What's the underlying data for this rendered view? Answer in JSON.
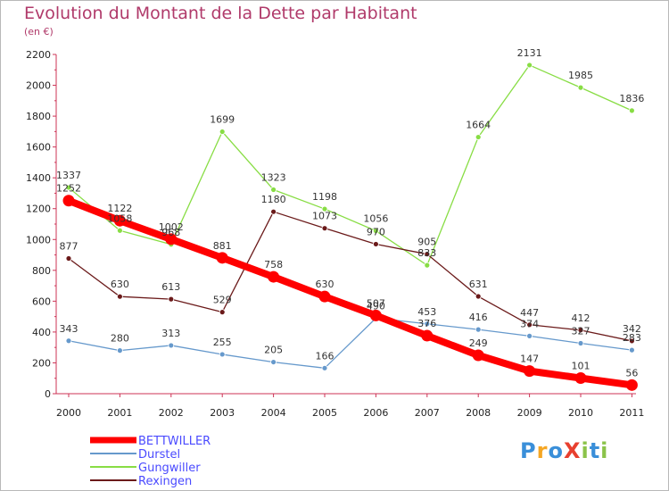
{
  "chart_data": {
    "type": "line",
    "title": "Evolution du Montant de la Dette par Habitant",
    "subtitle": "(en €)",
    "x": [
      "2000",
      "2001",
      "2002",
      "2003",
      "2004",
      "2005",
      "2006",
      "2007",
      "2008",
      "2009",
      "2010",
      "2011"
    ],
    "ylim": [
      0,
      2200
    ],
    "yticks": [
      0,
      200,
      400,
      600,
      800,
      1000,
      1200,
      1400,
      1600,
      1800,
      2000,
      2200
    ],
    "grid": false,
    "legend_position": "bottom-left",
    "series": [
      {
        "name": "BETTWILLER",
        "color": "#ff0000",
        "values": [
          1252,
          1122,
          1002,
          881,
          758,
          630,
          507,
          376,
          249,
          147,
          101,
          56
        ]
      },
      {
        "name": "Durstel",
        "color": "#6699cc",
        "values": [
          343,
          280,
          313,
          255,
          205,
          166,
          490,
          453,
          416,
          374,
          327,
          283
        ]
      },
      {
        "name": "Gungwiller",
        "color": "#88dd44",
        "values": [
          1337,
          1058,
          968,
          1699,
          1323,
          1198,
          1056,
          833,
          1664,
          2131,
          1985,
          1836
        ]
      },
      {
        "name": "Rexingen",
        "color": "#6b1a1a",
        "values": [
          877,
          630,
          613,
          529,
          1180,
          1073,
          970,
          905,
          631,
          447,
          412,
          342
        ]
      }
    ]
  },
  "logo": {
    "text": "ProXiti",
    "letters": [
      "P",
      "r",
      "o",
      "X",
      "i",
      "t",
      "i"
    ],
    "colors": [
      "#3a8fd9",
      "#f5a623",
      "#3a8fd9",
      "#e8402f",
      "#8bc34a",
      "#3a8fd9",
      "#8bc34a"
    ]
  }
}
